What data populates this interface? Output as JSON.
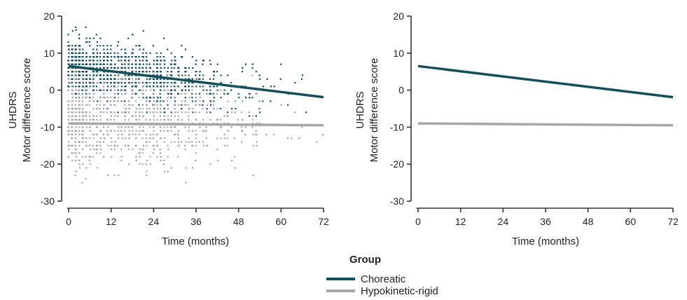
{
  "chart_data": [
    {
      "type": "scatter",
      "panel": "left",
      "xlabel": "Time (months)",
      "ylabel_line1": "UHDRS",
      "ylabel_line2": "Motor difference score",
      "xlim": [
        0,
        72
      ],
      "ylim": [
        -30,
        20
      ],
      "xticks": [
        0,
        12,
        24,
        36,
        48,
        60,
        72
      ],
      "yticks": [
        -30,
        -20,
        -10,
        0,
        10,
        20
      ],
      "xtick_labels": [
        "0",
        "12",
        "24",
        "36",
        "48",
        "60",
        "72"
      ],
      "ytick_labels": [
        "-30",
        "-20",
        "-10",
        "0",
        "10",
        "20"
      ],
      "grid": false,
      "series": [
        {
          "name": "Choreatic",
          "color": "#134f5c",
          "trend": {
            "x": [
              0,
              72
            ],
            "y": [
              6.5,
              -1.9
            ]
          },
          "scatter": {
            "x_center": 16,
            "x_spread": 16,
            "y_at_0": 6.5,
            "y_at_72": -1.9,
            "y_sd": 3.8,
            "n": 1250
          }
        },
        {
          "name": "Hypokinetic-rigid",
          "color": "#a6a6a6",
          "trend": {
            "x": [
              0,
              72
            ],
            "y": [
              -9.0,
              -9.5
            ]
          },
          "scatter": {
            "x_center": 18,
            "x_spread": 17,
            "y_at_0": -9.0,
            "y_at_72": -9.5,
            "y_sd": 5.5,
            "n": 900
          }
        }
      ]
    },
    {
      "type": "line",
      "panel": "right",
      "xlabel": "Time (months)",
      "ylabel_line1": "UHDRS",
      "ylabel_line2": "Motor difference score",
      "xlim": [
        0,
        72
      ],
      "ylim": [
        -30,
        20
      ],
      "xticks": [
        0,
        12,
        24,
        36,
        48,
        60,
        72
      ],
      "yticks": [
        -30,
        -20,
        -10,
        0,
        10,
        20
      ],
      "xtick_labels": [
        "0",
        "12",
        "24",
        "36",
        "48",
        "60",
        "72"
      ],
      "ytick_labels": [
        "-30",
        "-20",
        "-10",
        "0",
        "10",
        "20"
      ],
      "grid": false,
      "series": [
        {
          "name": "Choreatic",
          "color": "#134f5c",
          "x": [
            0,
            72
          ],
          "y": [
            6.5,
            -1.9
          ]
        },
        {
          "name": "Hypokinetic-rigid",
          "color": "#a6a6a6",
          "x": [
            0,
            72
          ],
          "y": [
            -9.0,
            -9.5
          ]
        }
      ]
    }
  ],
  "legend": {
    "title": "Group",
    "placement": "bottom-center",
    "items": [
      {
        "label": "Choreatic",
        "color": "#134f5c"
      },
      {
        "label": "Hypokinetic-rigid",
        "color": "#a6a6a6"
      }
    ]
  }
}
